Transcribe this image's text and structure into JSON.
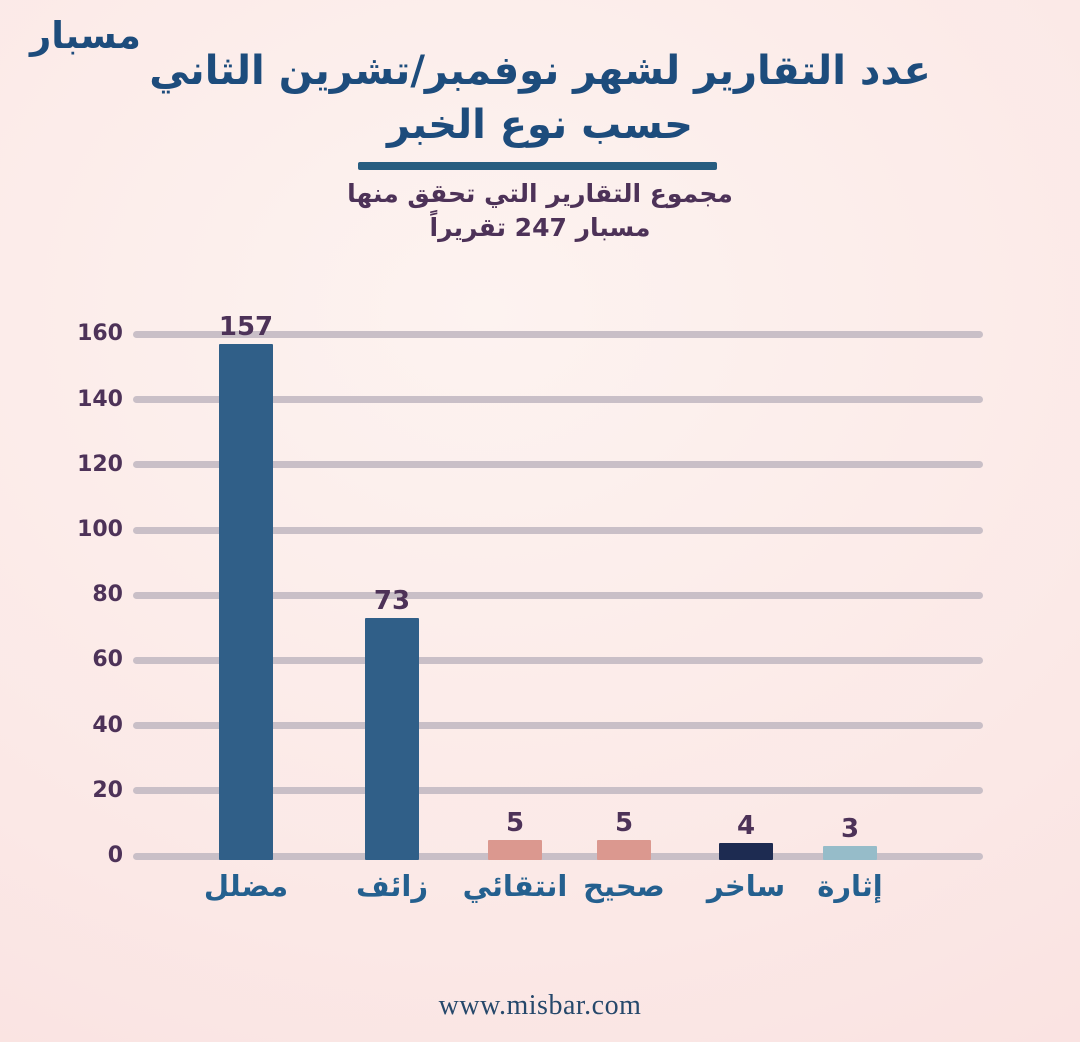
{
  "logo": "مسبار",
  "title": {
    "line1": "عدد التقارير لشهر نوفمبر/تشرين الثاني",
    "line2": "حسب نوع الخبر"
  },
  "subtitle": {
    "line1": "مجموع التقارير التي تحقق منها",
    "line2": "مسبار 247 تقريراً"
  },
  "footer": "www.misbar.com",
  "colors": {
    "title_blue": "#1d4c7c",
    "divider_blue": "#275d80",
    "purple_text": "#4d3258",
    "category_blue": "#24608f",
    "gridline": "#c9bfc7",
    "background_light": "#fdf3f0",
    "background_pink": "#f8dbdb",
    "footer_blue": "#26486b"
  },
  "chart_data": {
    "type": "bar",
    "title": "عدد التقارير لشهر نوفمبر/تشرين الثاني حسب نوع الخبر",
    "subtitle": "مجموع التقارير التي تحقق منها مسبار 247 تقريراً",
    "categories": [
      "مضلل",
      "زائف",
      "انتقائي",
      "صحيح",
      "ساخر",
      "إثارة"
    ],
    "values": [
      157,
      73,
      5,
      5,
      4,
      3
    ],
    "bar_colors": [
      "#305f88",
      "#305f88",
      "#db988f",
      "#db988f",
      "#1d2b51",
      "#96bcc9"
    ],
    "value_labels": [
      "157",
      "73",
      "5",
      "5",
      "4",
      "3"
    ],
    "yticks": [
      0,
      20,
      40,
      60,
      80,
      100,
      120,
      140,
      160
    ],
    "ylim": [
      0,
      160
    ],
    "xlabel": "",
    "ylabel": "",
    "grid": true,
    "legend": false,
    "value_labels_shown": true,
    "total_reports": 247
  }
}
